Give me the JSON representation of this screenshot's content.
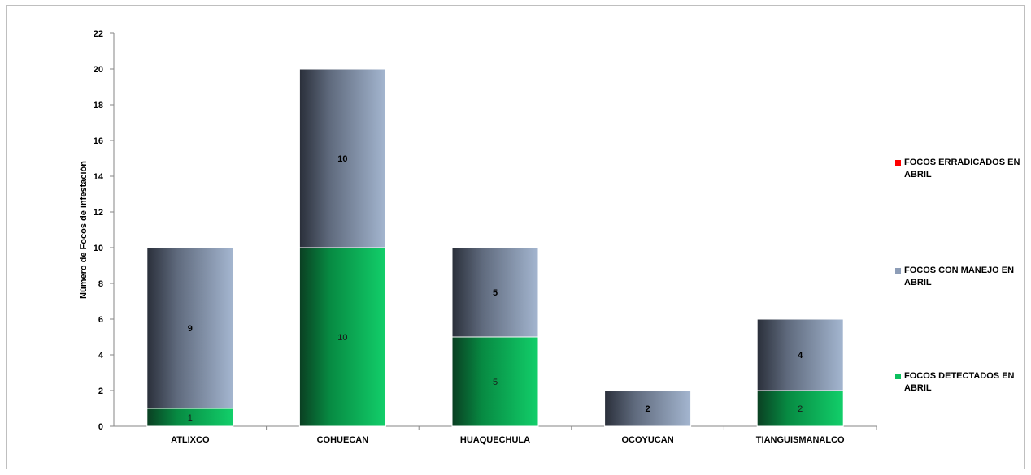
{
  "chart_data": {
    "type": "bar",
    "stacked": true,
    "categories": [
      "ATLIXCO",
      "COHUECAN",
      "HUAQUECHULA",
      "OCOYUCAN",
      "TIANGUISMANALCO"
    ],
    "series": [
      {
        "name": "FOCOS DETECTADOS EN ABRIL",
        "values": [
          1,
          10,
          5,
          0,
          2
        ],
        "color": "#0cc05e"
      },
      {
        "name": "FOCOS CON MANEJO EN ABRIL",
        "values": [
          9,
          10,
          5,
          2,
          4
        ],
        "color": "#8d9db7"
      },
      {
        "name": "FOCOS ERRADICADOS EN ABRIL",
        "values": [
          0,
          0,
          0,
          0,
          0
        ],
        "color": "#ff0000"
      }
    ],
    "data_labels": {
      "FOCOS DETECTADOS EN ABRIL": [
        "1",
        "10",
        "5",
        "",
        "2"
      ],
      "FOCOS CON MANEJO EN ABRIL": [
        "9",
        "10",
        "5",
        "2",
        "4"
      ]
    },
    "ylabel": "Número de Focos de infestación",
    "xlabel": "",
    "ylim": [
      0,
      22
    ],
    "yticks": [
      "0",
      "2",
      "4",
      "6",
      "8",
      "10",
      "12",
      "14",
      "16",
      "18",
      "20",
      "22"
    ],
    "grid": false,
    "legend_position": "right"
  },
  "legend": {
    "items": [
      {
        "label": "FOCOS ERRADICADOS EN ABRIL",
        "color": "#ff0000"
      },
      {
        "label": "FOCOS CON MANEJO EN ABRIL",
        "color": "#8d9db7"
      },
      {
        "label": "FOCOS DETECTADOS EN ABRIL",
        "color": "#0cc05e"
      }
    ]
  }
}
